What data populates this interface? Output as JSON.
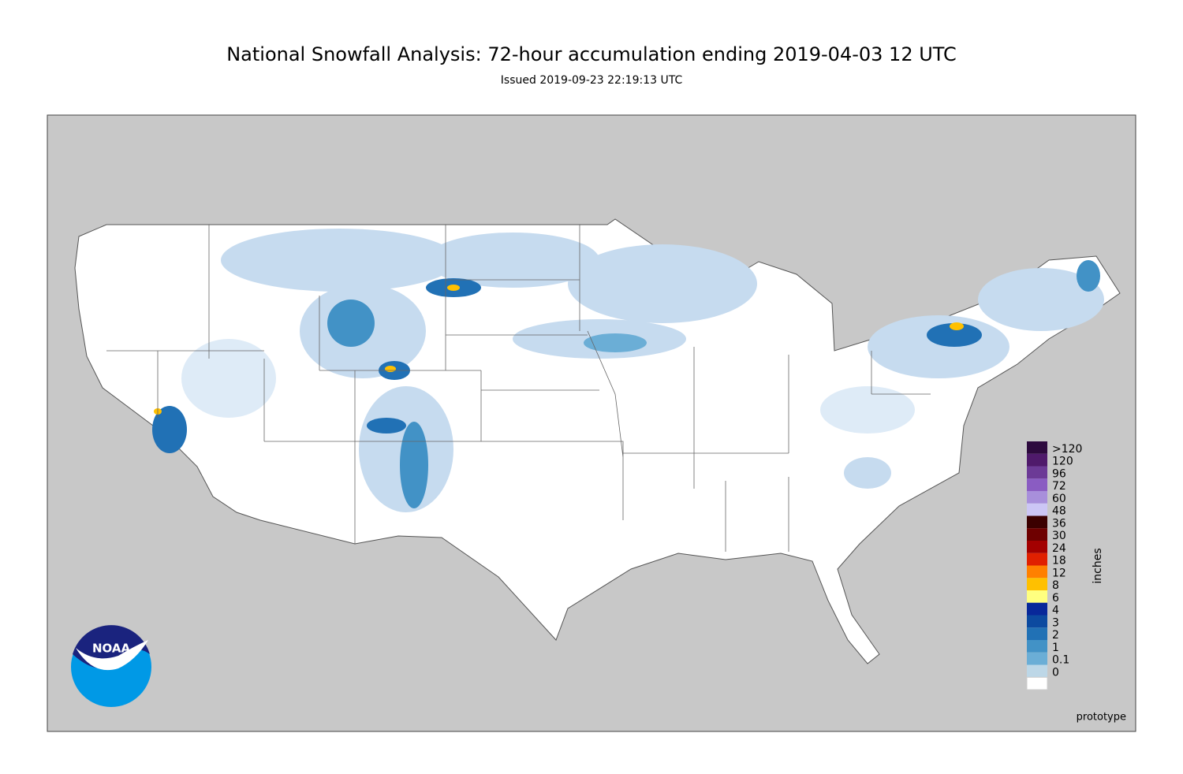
{
  "header": {
    "title": "National Snowfall Analysis: 72-hour accumulation ending 2019-04-03 12 UTC",
    "subtitle": "Issued 2019-09-23 22:19:13 UTC"
  },
  "legend": {
    "unit": "inches",
    "levels": [
      {
        "label": ">120",
        "color": "#2d0a3e"
      },
      {
        "label": "120",
        "color": "#4f1a6b"
      },
      {
        "label": "96",
        "color": "#6c3a96"
      },
      {
        "label": "72",
        "color": "#8a5cc2"
      },
      {
        "label": "60",
        "color": "#a88fdb"
      },
      {
        "label": "48",
        "color": "#ccc6f5"
      },
      {
        "label": "36",
        "color": "#3b0000"
      },
      {
        "label": "30",
        "color": "#6e0000"
      },
      {
        "label": "24",
        "color": "#a30000"
      },
      {
        "label": "18",
        "color": "#e02000"
      },
      {
        "label": "12",
        "color": "#ff8000"
      },
      {
        "label": "8",
        "color": "#ffc000"
      },
      {
        "label": "6",
        "color": "#ffff80"
      },
      {
        "label": "4",
        "color": "#08289a"
      },
      {
        "label": "3",
        "color": "#0c4aa0"
      },
      {
        "label": "2",
        "color": "#2171b5"
      },
      {
        "label": "1",
        "color": "#4292c6"
      },
      {
        "label": "0.1",
        "color": "#6baed6"
      },
      {
        "label": "0",
        "color": "#bdd7e7"
      }
    ],
    "zero_color": "#ffffff"
  },
  "logo": {
    "text": "NOAA"
  },
  "footer": {
    "note": "prototype"
  }
}
